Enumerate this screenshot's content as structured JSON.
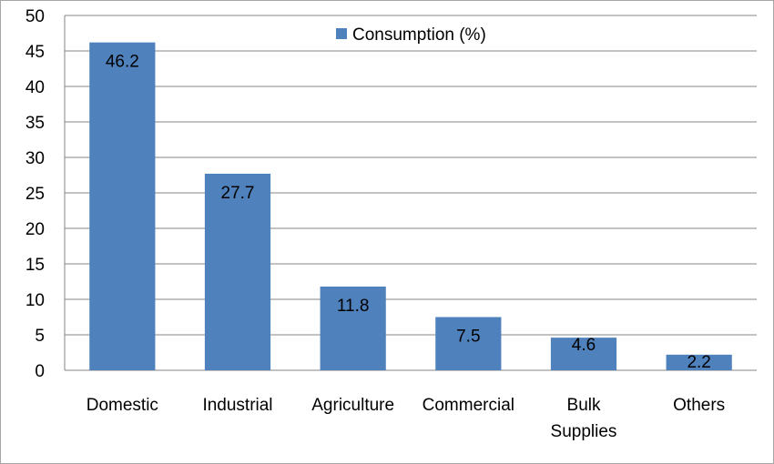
{
  "chart_data": {
    "type": "bar",
    "categories": [
      [
        "Domestic"
      ],
      [
        "Industrial"
      ],
      [
        "Agriculture"
      ],
      [
        "Commercial"
      ],
      [
        "Bulk",
        "Supplies"
      ],
      [
        "Others"
      ]
    ],
    "series": [
      {
        "name": "Consumption (%)",
        "values": [
          46.2,
          27.7,
          11.8,
          7.5,
          4.6,
          2.2
        ],
        "color": "#4f81bd"
      }
    ],
    "data_labels": [
      "46.2",
      "27.7",
      "11.8",
      "7.5",
      "4.6",
      "2.2"
    ],
    "yticks": [
      "0",
      "5",
      "10",
      "15",
      "20",
      "25",
      "30",
      "35",
      "40",
      "45",
      "50"
    ],
    "ylim": [
      0,
      50
    ],
    "grid": true,
    "legend_position": "top-center",
    "gridline_color": "#868686"
  }
}
